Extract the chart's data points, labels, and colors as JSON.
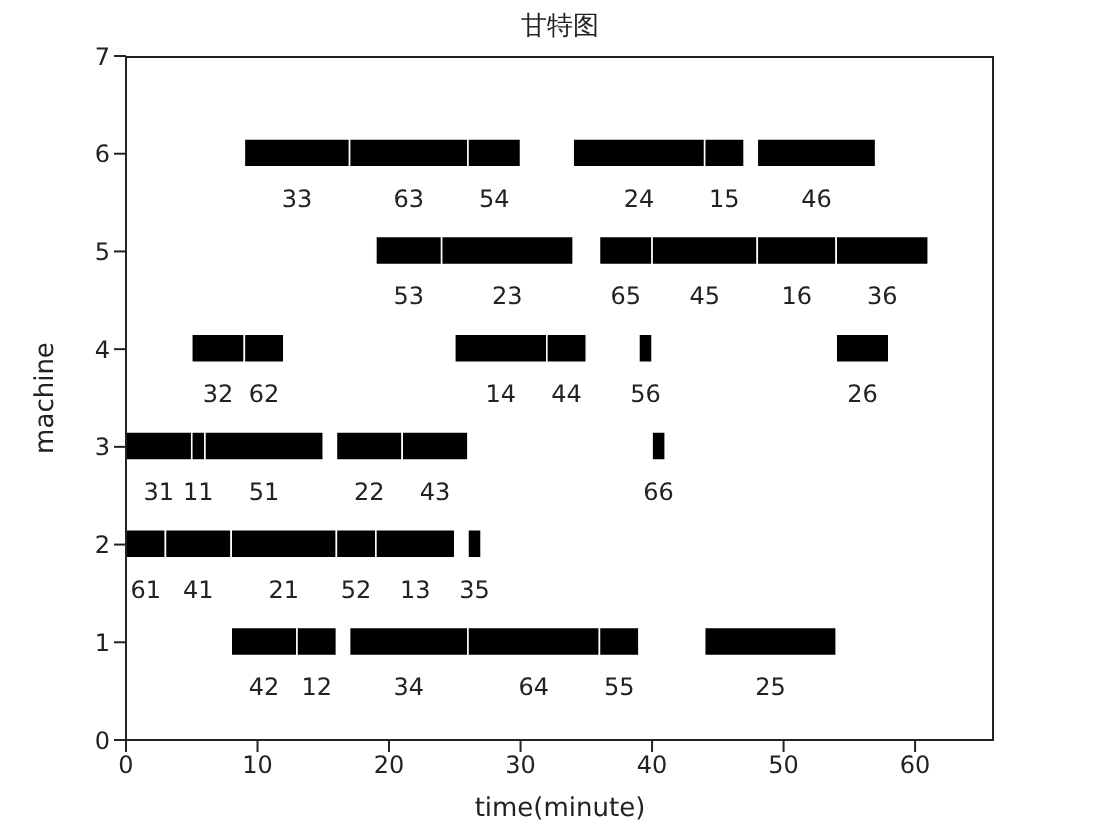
{
  "chart_data": {
    "type": "bar",
    "orientation": "horizontal",
    "title": "甘特图",
    "xlabel": "time(minute)",
    "ylabel": "machine",
    "categories": [
      "7",
      "6",
      "5",
      "4",
      "3",
      "2",
      "1",
      "0"
    ],
    "xlim": [
      0,
      66
    ],
    "xticks": [
      0,
      10,
      20,
      30,
      40,
      50,
      60
    ],
    "grid": false,
    "legend": false,
    "series": [
      {
        "color": "#000000",
        "base": [
          null,
          9,
          19,
          5,
          0,
          0,
          8,
          null
        ],
        "values": [
          null,
          8,
          5,
          4,
          5,
          3,
          5,
          null
        ]
      },
      {
        "color": "#000000",
        "base": [
          null,
          17,
          24,
          9,
          5,
          3,
          13,
          null
        ],
        "values": [
          null,
          9,
          10,
          3,
          1,
          5,
          3,
          null
        ]
      },
      {
        "color": "#000000",
        "base": [
          null,
          26,
          36,
          25,
          6,
          8,
          17,
          null
        ],
        "values": [
          null,
          4,
          4,
          7,
          9,
          8,
          9,
          null
        ]
      },
      {
        "color": "#000000",
        "base": [
          null,
          34,
          40,
          32,
          16,
          16,
          26,
          null
        ],
        "values": [
          null,
          10,
          8,
          3,
          5,
          3,
          10,
          null
        ]
      },
      {
        "color": "#000000",
        "base": [
          null,
          44,
          48,
          39,
          21,
          19,
          36,
          null
        ],
        "values": [
          null,
          3,
          6,
          1,
          5,
          6,
          3,
          null
        ]
      },
      {
        "color": "#000000",
        "base": [
          null,
          48,
          54,
          54,
          40,
          26,
          44,
          null
        ],
        "values": [
          null,
          9,
          7,
          4,
          1,
          1,
          10,
          null
        ]
      }
    ],
    "annotations": [
      "33",
      "53",
      "32",
      "31",
      "61",
      "42",
      "63",
      "23",
      "62",
      "11",
      "41",
      "12",
      "54",
      "65",
      "14",
      "51",
      "21",
      "34",
      "24",
      "45",
      "44",
      "22",
      "52",
      "64",
      "15",
      "16",
      "56",
      "43",
      "13",
      "55",
      "46",
      "36",
      "26",
      "66",
      "35",
      "25"
    ]
  }
}
